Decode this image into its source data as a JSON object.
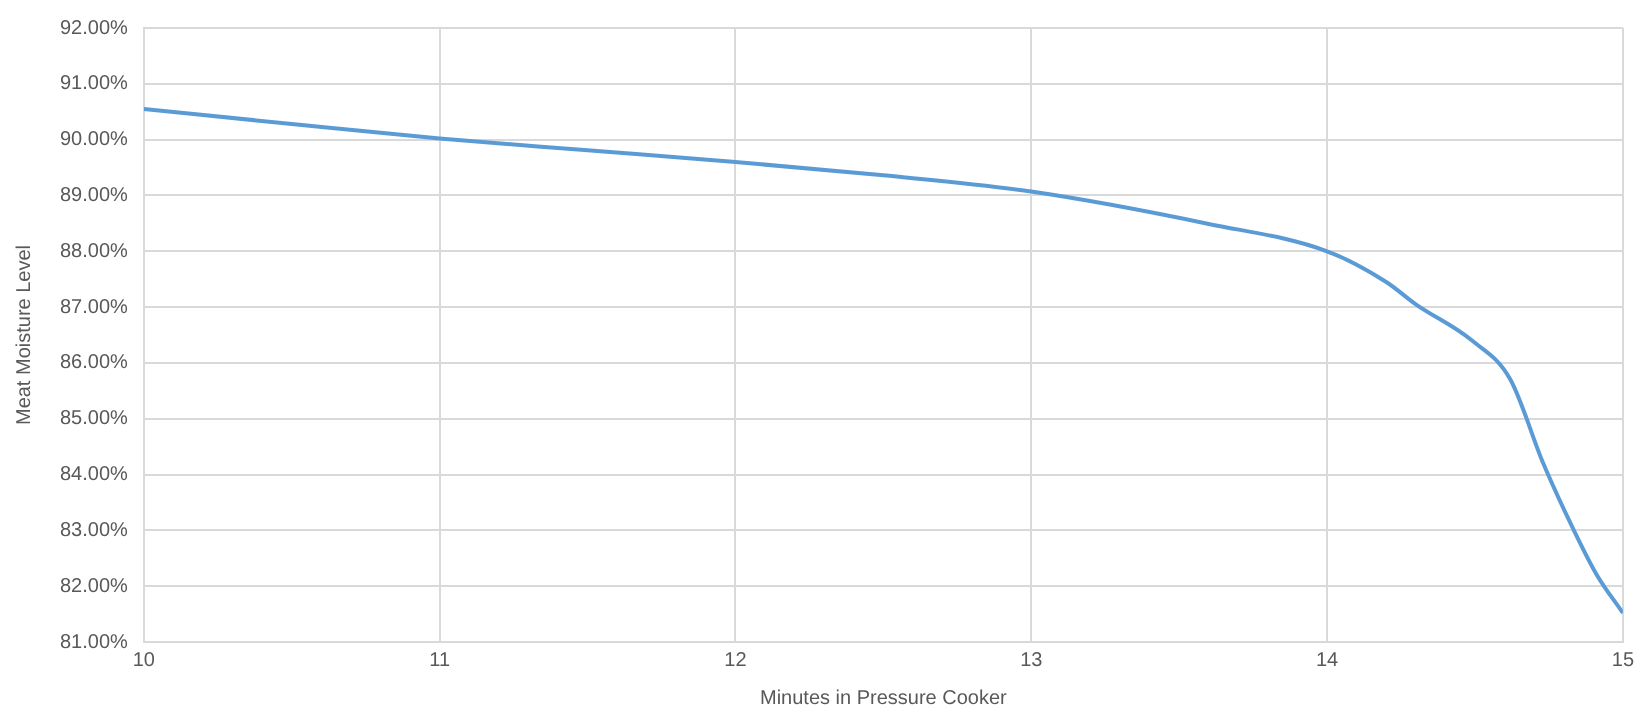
{
  "chart_data": {
    "type": "line",
    "xlabel": "Minutes in Pressure Cooker",
    "ylabel": "Meat Moisture Level",
    "x": [
      10,
      10.5,
      11,
      11.5,
      12,
      12.5,
      13,
      13.6,
      14,
      14.2,
      14.3,
      14.49,
      14.62,
      14.73,
      14.82,
      14.91,
      15
    ],
    "series": [
      {
        "color": "#5b9bd5",
        "values": [
          90.55,
          90.28,
          90.02,
          89.81,
          89.6,
          89.36,
          89.07,
          88.49,
          88.0,
          87.45,
          87.05,
          86.4,
          85.7,
          84.21,
          83.16,
          82.22,
          81.52
        ]
      }
    ],
    "xlim": [
      10,
      15
    ],
    "xticks": [
      10,
      11,
      12,
      13,
      14,
      15
    ],
    "ylim": [
      81,
      92
    ],
    "yticks": [
      {
        "value": 81,
        "label": "81.00%"
      },
      {
        "value": 82,
        "label": "82.00%"
      },
      {
        "value": 83,
        "label": "83.00%"
      },
      {
        "value": 84,
        "label": "84.00%"
      },
      {
        "value": 85,
        "label": "85.00%"
      },
      {
        "value": 86,
        "label": "86.00%"
      },
      {
        "value": 87,
        "label": "87.00%"
      },
      {
        "value": 88,
        "label": "88.00%"
      },
      {
        "value": 89,
        "label": "89.00%"
      },
      {
        "value": 90,
        "label": "90.00%"
      },
      {
        "value": 91,
        "label": "91.00%"
      },
      {
        "value": 92,
        "label": "92.00%"
      }
    ],
    "grid": true,
    "marker": "none",
    "line_style": "solid"
  }
}
